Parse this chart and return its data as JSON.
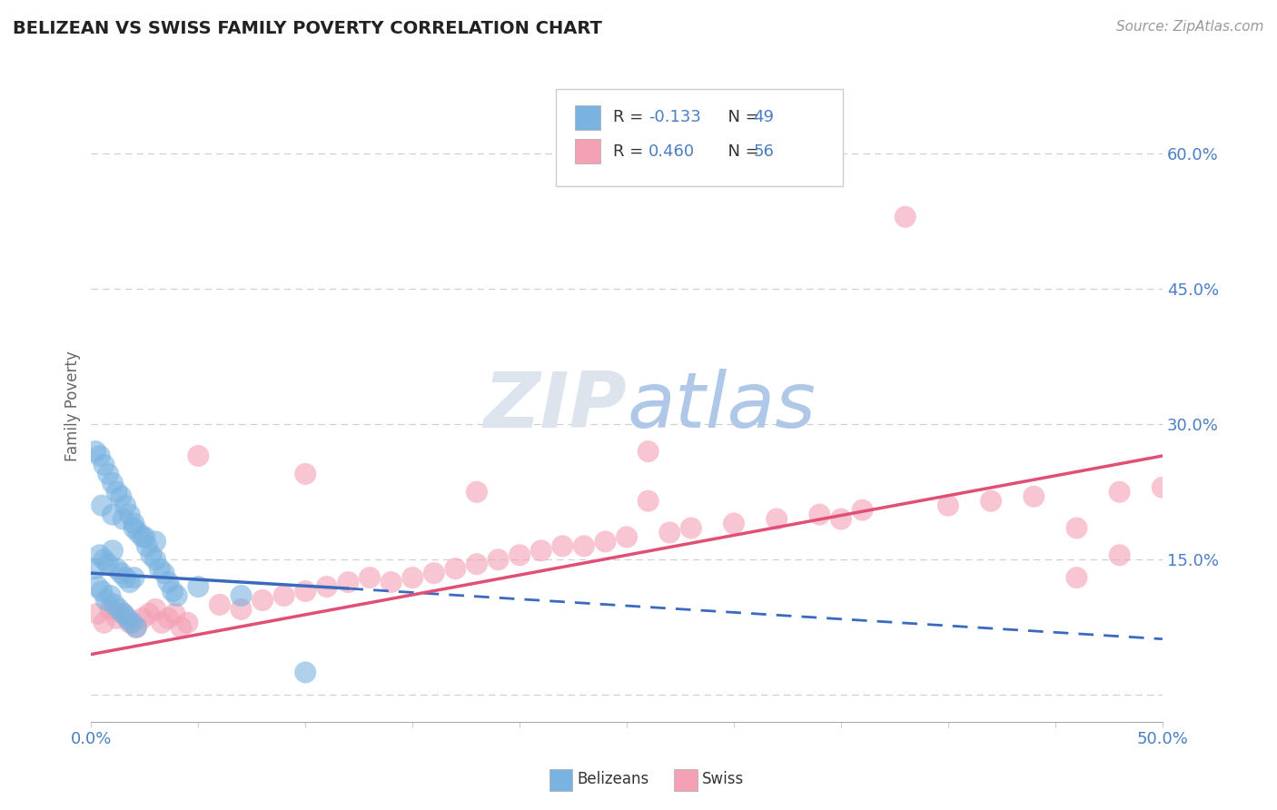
{
  "title": "BELIZEAN VS SWISS FAMILY POVERTY CORRELATION CHART",
  "source": "Source: ZipAtlas.com",
  "ylabel": "Family Poverty",
  "x_min": 0.0,
  "x_max": 0.5,
  "y_min": -0.03,
  "y_max": 0.67,
  "grid_color": "#d0d0d0",
  "background_color": "#ffffff",
  "belizean_color": "#7ab3e0",
  "swiss_color": "#f4a0b5",
  "belizean_line_color": "#3a6abf",
  "swiss_line_color": "#e05075",
  "belizean_R": -0.133,
  "belizean_N": 49,
  "swiss_R": 0.46,
  "swiss_N": 56,
  "bel_scatter_x": [
    0.002,
    0.004,
    0.006,
    0.008,
    0.01,
    0.012,
    0.014,
    0.016,
    0.018,
    0.02,
    0.003,
    0.005,
    0.007,
    0.009,
    0.011,
    0.013,
    0.015,
    0.017,
    0.019,
    0.021,
    0.002,
    0.004,
    0.006,
    0.008,
    0.01,
    0.012,
    0.014,
    0.016,
    0.018,
    0.02,
    0.022,
    0.024,
    0.026,
    0.028,
    0.03,
    0.032,
    0.034,
    0.036,
    0.038,
    0.04,
    0.005,
    0.01,
    0.015,
    0.02,
    0.025,
    0.03,
    0.05,
    0.07,
    0.1
  ],
  "bel_scatter_y": [
    0.14,
    0.155,
    0.15,
    0.145,
    0.16,
    0.14,
    0.135,
    0.13,
    0.125,
    0.13,
    0.12,
    0.115,
    0.105,
    0.11,
    0.1,
    0.095,
    0.09,
    0.085,
    0.08,
    0.075,
    0.27,
    0.265,
    0.255,
    0.245,
    0.235,
    0.225,
    0.22,
    0.21,
    0.2,
    0.19,
    0.18,
    0.175,
    0.165,
    0.155,
    0.15,
    0.14,
    0.135,
    0.125,
    0.115,
    0.11,
    0.21,
    0.2,
    0.195,
    0.185,
    0.175,
    0.17,
    0.12,
    0.11,
    0.025
  ],
  "swi_scatter_x": [
    0.003,
    0.006,
    0.009,
    0.012,
    0.015,
    0.018,
    0.021,
    0.024,
    0.027,
    0.03,
    0.033,
    0.036,
    0.039,
    0.042,
    0.045,
    0.06,
    0.07,
    0.08,
    0.09,
    0.1,
    0.11,
    0.12,
    0.13,
    0.14,
    0.15,
    0.16,
    0.17,
    0.18,
    0.19,
    0.2,
    0.21,
    0.22,
    0.23,
    0.24,
    0.25,
    0.26,
    0.27,
    0.28,
    0.3,
    0.32,
    0.34,
    0.36,
    0.38,
    0.4,
    0.42,
    0.44,
    0.46,
    0.48,
    0.5,
    0.05,
    0.1,
    0.18,
    0.26,
    0.35,
    0.46,
    0.48
  ],
  "swi_scatter_y": [
    0.09,
    0.08,
    0.095,
    0.085,
    0.09,
    0.08,
    0.075,
    0.085,
    0.09,
    0.095,
    0.08,
    0.085,
    0.09,
    0.075,
    0.08,
    0.1,
    0.095,
    0.105,
    0.11,
    0.115,
    0.12,
    0.125,
    0.13,
    0.125,
    0.13,
    0.135,
    0.14,
    0.145,
    0.15,
    0.155,
    0.16,
    0.165,
    0.165,
    0.17,
    0.175,
    0.27,
    0.18,
    0.185,
    0.19,
    0.195,
    0.2,
    0.205,
    0.53,
    0.21,
    0.215,
    0.22,
    0.13,
    0.225,
    0.23,
    0.265,
    0.245,
    0.225,
    0.215,
    0.195,
    0.185,
    0.155
  ],
  "bel_line_x0": 0.0,
  "bel_line_x_solid_end": 0.12,
  "bel_line_x1": 0.5,
  "bel_line_y0": 0.135,
  "bel_line_y_solid_end": 0.118,
  "bel_line_y1": 0.062,
  "swi_line_x0": 0.0,
  "swi_line_x1": 0.5,
  "swi_line_y0": 0.045,
  "swi_line_y1": 0.265
}
